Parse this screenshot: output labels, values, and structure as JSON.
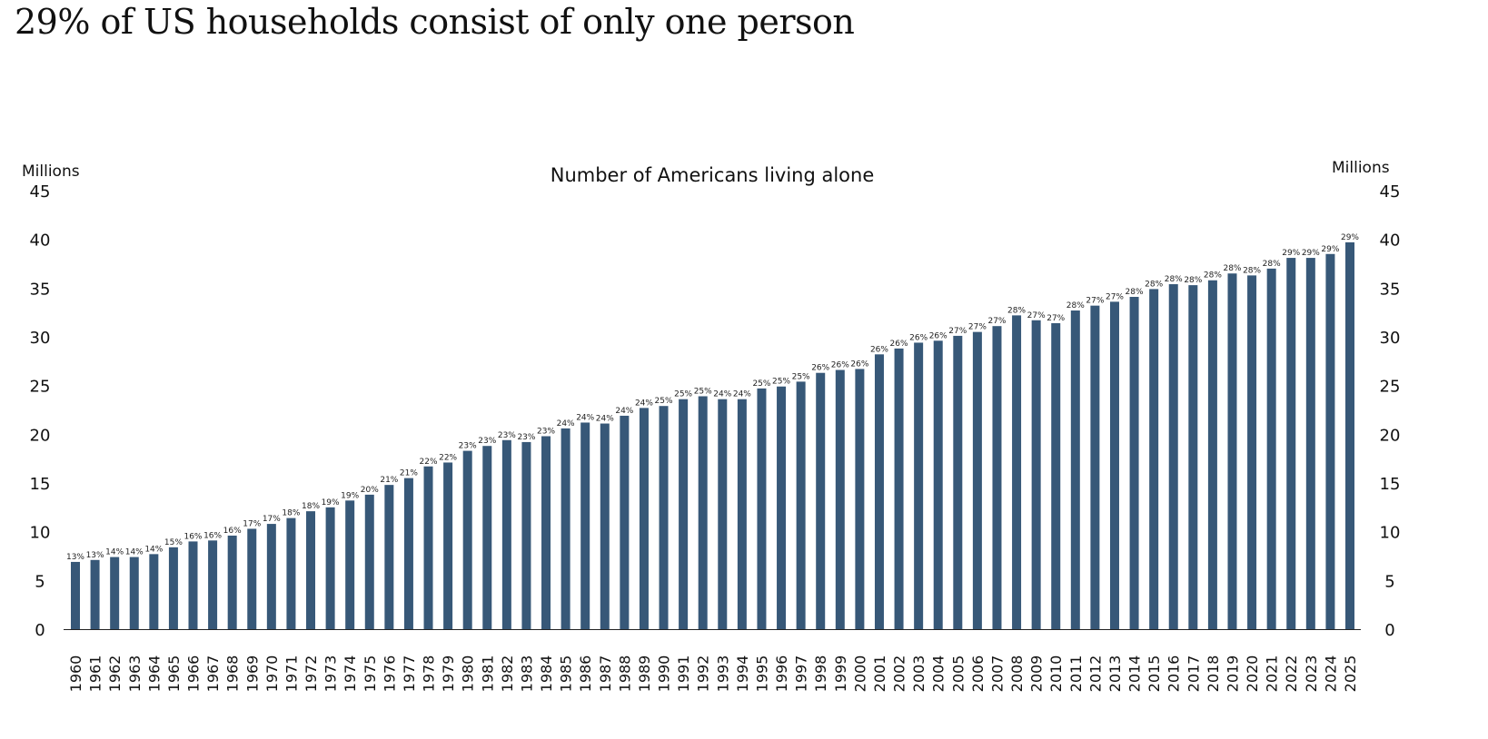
{
  "page_title": "29% of US households consist of only one person",
  "chart_data": {
    "type": "bar",
    "title": "Number of Americans living alone",
    "ylabel_left": "Millions",
    "ylabel_right": "Millions",
    "ylim": [
      0,
      45
    ],
    "yticks": [
      0,
      5,
      10,
      15,
      20,
      25,
      30,
      35,
      40,
      45
    ],
    "grid": false,
    "bar_color": "#375878",
    "categories": [
      "1960",
      "1961",
      "1962",
      "1963",
      "1964",
      "1965",
      "1966",
      "1967",
      "1968",
      "1969",
      "1970",
      "1971",
      "1972",
      "1973",
      "1974",
      "1975",
      "1976",
      "1977",
      "1978",
      "1979",
      "1980",
      "1981",
      "1982",
      "1983",
      "1984",
      "1985",
      "1986",
      "1987",
      "1988",
      "1989",
      "1990",
      "1991",
      "1992",
      "1993",
      "1994",
      "1995",
      "1996",
      "1997",
      "1998",
      "1999",
      "2000",
      "2001",
      "2002",
      "2003",
      "2004",
      "2005",
      "2006",
      "2007",
      "2008",
      "2009",
      "2010",
      "2011",
      "2012",
      "2013",
      "2014",
      "2015",
      "2016",
      "2017",
      "2018",
      "2019",
      "2020",
      "2021",
      "2022",
      "2023",
      "2024",
      "2025"
    ],
    "values": [
      6.9,
      7.1,
      7.4,
      7.4,
      7.7,
      8.4,
      9.0,
      9.1,
      9.6,
      10.3,
      10.8,
      11.4,
      12.1,
      12.5,
      13.2,
      13.8,
      14.8,
      15.5,
      16.7,
      17.1,
      18.3,
      18.8,
      19.4,
      19.2,
      19.8,
      20.6,
      21.2,
      21.1,
      21.9,
      22.7,
      22.9,
      23.6,
      23.9,
      23.6,
      23.6,
      24.7,
      24.9,
      25.4,
      26.3,
      26.6,
      26.7,
      28.2,
      28.8,
      29.4,
      29.6,
      30.1,
      30.5,
      31.1,
      32.2,
      31.7,
      31.4,
      32.7,
      33.2,
      33.6,
      34.1,
      34.9,
      35.4,
      35.3,
      35.8,
      36.5,
      36.3,
      37.0,
      38.1,
      38.1,
      38.5,
      39.7
    ],
    "data_labels": [
      "13%",
      "13%",
      "14%",
      "14%",
      "14%",
      "15%",
      "16%",
      "16%",
      "16%",
      "17%",
      "17%",
      "18%",
      "18%",
      "19%",
      "19%",
      "20%",
      "21%",
      "21%",
      "22%",
      "22%",
      "23%",
      "23%",
      "23%",
      "23%",
      "23%",
      "24%",
      "24%",
      "24%",
      "24%",
      "24%",
      "25%",
      "25%",
      "25%",
      "24%",
      "24%",
      "25%",
      "25%",
      "25%",
      "26%",
      "26%",
      "26%",
      "26%",
      "26%",
      "26%",
      "26%",
      "27%",
      "27%",
      "27%",
      "28%",
      "27%",
      "27%",
      "28%",
      "27%",
      "27%",
      "28%",
      "28%",
      "28%",
      "28%",
      "28%",
      "28%",
      "28%",
      "28%",
      "29%",
      "29%",
      "29%",
      "29%"
    ]
  }
}
